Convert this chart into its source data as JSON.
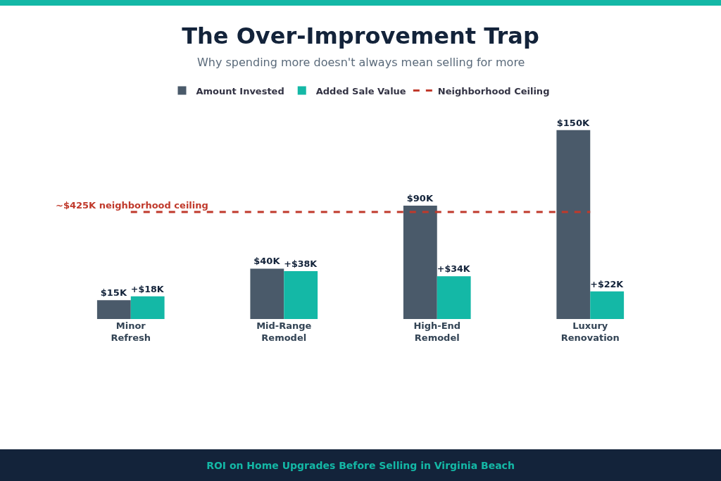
{
  "chart_data": {
    "type": "bar",
    "title": "The Over-Improvement Trap",
    "subtitle": "Why spending more doesn't always mean selling for more",
    "categories": [
      "Minor Refresh",
      "Mid-Range Remodel",
      "High-End Remodel",
      "Luxury Renovation"
    ],
    "series": [
      {
        "name": "Amount Invested",
        "color": "#4a5a6a",
        "values": [
          15,
          40,
          90,
          150
        ],
        "value_labels": [
          "$15K",
          "$40K",
          "$90K",
          "$150K"
        ]
      },
      {
        "name": "Added Sale Value",
        "color": "#14b8a6",
        "values": [
          18,
          38,
          34,
          22
        ],
        "value_labels": [
          "+$18K",
          "+$38K",
          "+$34K",
          "+$22K"
        ]
      },
      {
        "name": "Neighborhood Ceiling",
        "type": "line",
        "color": "#c0392b",
        "line_style": "dashed",
        "marker": "none",
        "values": [
          85,
          85,
          85,
          85
        ]
      }
    ],
    "annotations": [
      {
        "text": "~$425K neighborhood ceiling",
        "y": 85
      },
      "ROI on Home Upgrades Before Selling in Virginia Beach"
    ],
    "legend": "top",
    "grid": false,
    "tick_labels": "x"
  }
}
